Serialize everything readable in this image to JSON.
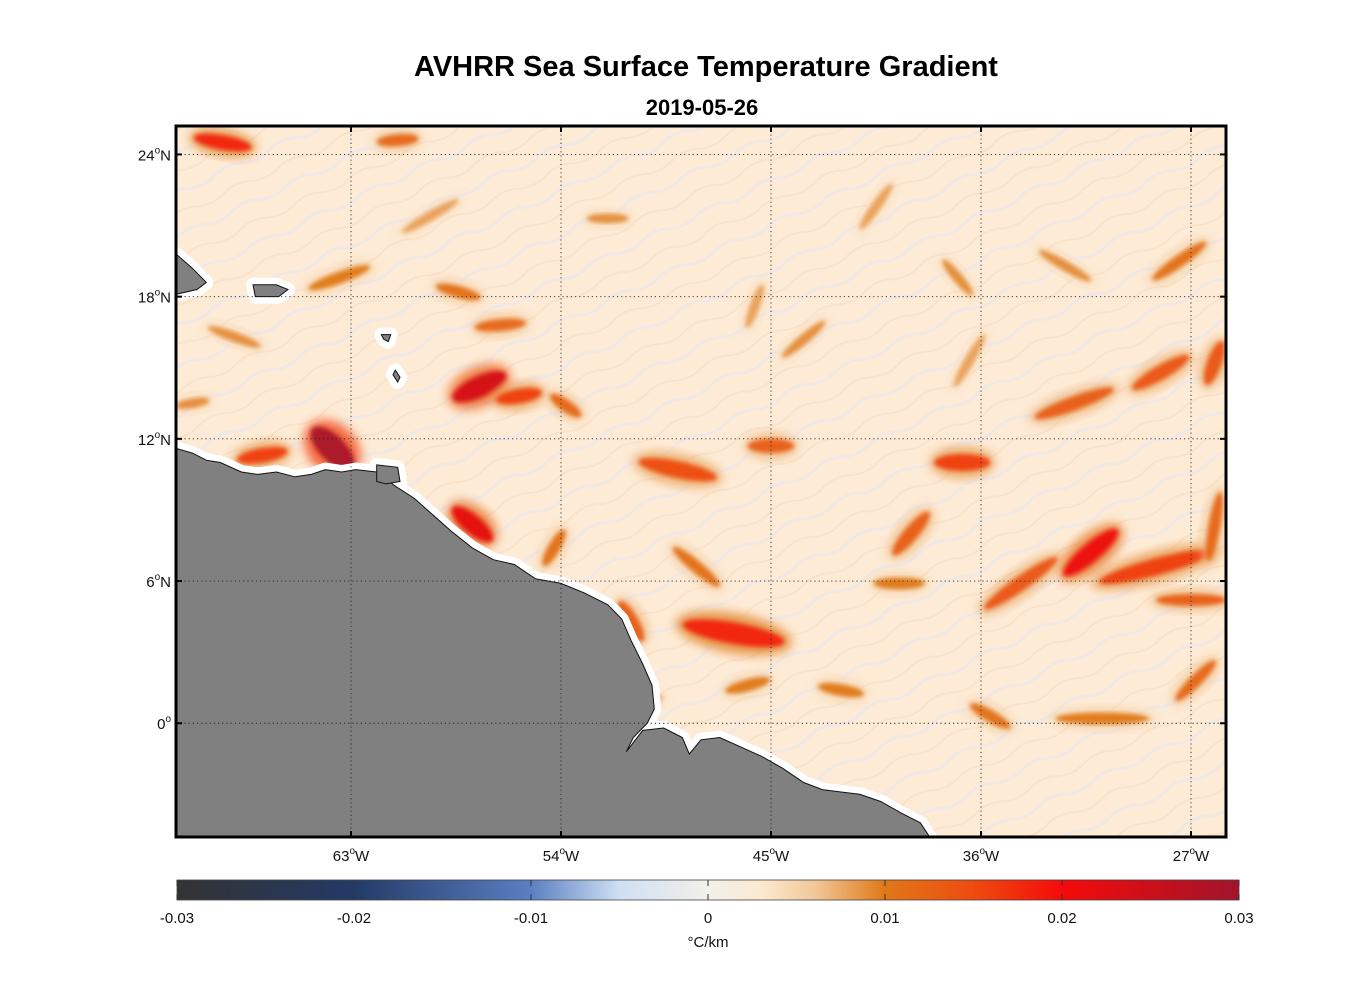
{
  "title": "AVHRR Sea Surface Temperature Gradient",
  "subtitle": "2019-05-26",
  "chart_data": {
    "type": "heatmap",
    "map": {
      "lon_range": [
        -70.5,
        -25.5
      ],
      "lat_range": [
        -4.8,
        25.2
      ],
      "lon_ticks": [
        {
          "value": -63,
          "label": "63",
          "sup": "o",
          "hemi": "W"
        },
        {
          "value": -54,
          "label": "54",
          "sup": "o",
          "hemi": "W"
        },
        {
          "value": -45,
          "label": "45",
          "sup": "o",
          "hemi": "W"
        },
        {
          "value": -36,
          "label": "36",
          "sup": "o",
          "hemi": "W"
        },
        {
          "value": -27,
          "label": "27",
          "sup": "o",
          "hemi": "W"
        }
      ],
      "lat_ticks": [
        {
          "value": 24,
          "label": "24",
          "sup": "o",
          "hemi": "N"
        },
        {
          "value": 18,
          "label": "18",
          "sup": "o",
          "hemi": "N"
        },
        {
          "value": 12,
          "label": "12",
          "sup": "o",
          "hemi": "N"
        },
        {
          "value": 6,
          "label": "6",
          "sup": "o",
          "hemi": "N"
        },
        {
          "value": 0,
          "label": "0",
          "sup": "o",
          "hemi": ""
        }
      ],
      "grid": true,
      "land_color": "#808080",
      "ocean_base_color": "#fdebd6"
    },
    "land_polygons": [
      {
        "name": "south-america-coast",
        "points": [
          [
            -70.5,
            11.6
          ],
          [
            -69.8,
            11.4
          ],
          [
            -69.2,
            11.1
          ],
          [
            -68.6,
            11.0
          ],
          [
            -67.7,
            10.6
          ],
          [
            -67.0,
            10.5
          ],
          [
            -66.2,
            10.6
          ],
          [
            -65.4,
            10.4
          ],
          [
            -64.7,
            10.5
          ],
          [
            -64.1,
            10.7
          ],
          [
            -63.4,
            10.6
          ],
          [
            -62.8,
            10.7
          ],
          [
            -61.9,
            10.6
          ],
          [
            -61.1,
            10.0
          ],
          [
            -60.3,
            9.5
          ],
          [
            -59.5,
            8.8
          ],
          [
            -58.7,
            8.1
          ],
          [
            -57.8,
            7.4
          ],
          [
            -56.9,
            6.9
          ],
          [
            -56.0,
            6.7
          ],
          [
            -55.1,
            6.1
          ],
          [
            -54.0,
            5.9
          ],
          [
            -53.0,
            5.5
          ],
          [
            -52.0,
            5.0
          ],
          [
            -51.4,
            4.4
          ],
          [
            -51.0,
            3.5
          ],
          [
            -50.5,
            2.5
          ],
          [
            -50.1,
            1.6
          ],
          [
            -50.0,
            0.6
          ],
          [
            -50.3,
            0.0
          ],
          [
            -50.9,
            -0.6
          ],
          [
            -51.2,
            -1.2
          ],
          [
            -50.5,
            -0.3
          ],
          [
            -49.6,
            -0.2
          ],
          [
            -48.8,
            -0.6
          ],
          [
            -48.5,
            -1.3
          ],
          [
            -48.0,
            -0.7
          ],
          [
            -47.2,
            -0.6
          ],
          [
            -46.3,
            -1.0
          ],
          [
            -45.4,
            -1.4
          ],
          [
            -44.5,
            -1.9
          ],
          [
            -43.6,
            -2.5
          ],
          [
            -42.8,
            -2.8
          ],
          [
            -42.0,
            -2.9
          ],
          [
            -41.2,
            -3.0
          ],
          [
            -40.3,
            -3.3
          ],
          [
            -39.4,
            -3.8
          ],
          [
            -38.6,
            -4.2
          ],
          [
            -38.2,
            -4.8
          ],
          [
            -70.5,
            -4.8
          ]
        ]
      },
      {
        "name": "hispaniola-tip",
        "points": [
          [
            -70.5,
            19.8
          ],
          [
            -69.8,
            19.2
          ],
          [
            -69.2,
            18.6
          ],
          [
            -69.6,
            18.3
          ],
          [
            -70.5,
            18.1
          ]
        ]
      },
      {
        "name": "puerto-rico",
        "points": [
          [
            -67.2,
            18.5
          ],
          [
            -66.2,
            18.5
          ],
          [
            -65.7,
            18.3
          ],
          [
            -66.1,
            18.0
          ],
          [
            -67.1,
            18.0
          ]
        ]
      },
      {
        "name": "trinidad",
        "points": [
          [
            -61.9,
            10.9
          ],
          [
            -61.0,
            10.8
          ],
          [
            -60.9,
            10.2
          ],
          [
            -61.5,
            10.1
          ],
          [
            -61.9,
            10.2
          ]
        ]
      },
      {
        "name": "guadeloupe",
        "points": [
          [
            -61.7,
            16.4
          ],
          [
            -61.3,
            16.4
          ],
          [
            -61.4,
            16.1
          ],
          [
            -61.6,
            16.2
          ]
        ]
      },
      {
        "name": "martinique",
        "points": [
          [
            -61.1,
            14.9
          ],
          [
            -60.9,
            14.6
          ],
          [
            -61.0,
            14.4
          ],
          [
            -61.2,
            14.7
          ]
        ]
      }
    ],
    "gradient_features": [
      {
        "lon": -68.5,
        "lat": 24.5,
        "len": 2.5,
        "angle": -10,
        "width": 0.6,
        "value": 0.018
      },
      {
        "lon": -61.0,
        "lat": 24.6,
        "len": 1.8,
        "angle": 5,
        "width": 0.5,
        "value": 0.012
      },
      {
        "lon": -57.5,
        "lat": 14.2,
        "len": 2.5,
        "angle": 25,
        "width": 0.9,
        "value": 0.024
      },
      {
        "lon": -55.8,
        "lat": 13.8,
        "len": 2.0,
        "angle": 10,
        "width": 0.6,
        "value": 0.016
      },
      {
        "lon": -53.8,
        "lat": 13.4,
        "len": 1.6,
        "angle": -35,
        "width": 0.5,
        "value": 0.012
      },
      {
        "lon": -63.8,
        "lat": 11.6,
        "len": 2.4,
        "angle": -45,
        "width": 1.1,
        "value": 0.029
      },
      {
        "lon": -66.8,
        "lat": 11.3,
        "len": 2.2,
        "angle": 10,
        "width": 0.6,
        "value": 0.016
      },
      {
        "lon": -57.8,
        "lat": 8.4,
        "len": 2.2,
        "angle": -40,
        "width": 0.8,
        "value": 0.022
      },
      {
        "lon": -56.6,
        "lat": 16.8,
        "len": 2.2,
        "angle": 5,
        "width": 0.5,
        "value": 0.012
      },
      {
        "lon": -58.4,
        "lat": 18.2,
        "len": 2.0,
        "angle": -15,
        "width": 0.5,
        "value": 0.011
      },
      {
        "lon": -63.5,
        "lat": 18.8,
        "len": 2.8,
        "angle": 20,
        "width": 0.5,
        "value": 0.01
      },
      {
        "lon": -49.0,
        "lat": 10.7,
        "len": 3.4,
        "angle": -12,
        "width": 0.7,
        "value": 0.015
      },
      {
        "lon": -45.0,
        "lat": 11.7,
        "len": 2.0,
        "angle": 0,
        "width": 0.6,
        "value": 0.013
      },
      {
        "lon": -46.6,
        "lat": 3.8,
        "len": 4.4,
        "angle": -10,
        "width": 0.9,
        "value": 0.018
      },
      {
        "lon": -51.0,
        "lat": 4.3,
        "len": 2.0,
        "angle": -60,
        "width": 0.6,
        "value": 0.013
      },
      {
        "lon": -46.0,
        "lat": 1.6,
        "len": 2.0,
        "angle": 15,
        "width": 0.5,
        "value": 0.01
      },
      {
        "lon": -36.8,
        "lat": 11.0,
        "len": 2.4,
        "angle": 0,
        "width": 0.7,
        "value": 0.016
      },
      {
        "lon": -39.0,
        "lat": 8.0,
        "len": 2.4,
        "angle": 50,
        "width": 0.6,
        "value": 0.013
      },
      {
        "lon": -31.3,
        "lat": 7.2,
        "len": 3.0,
        "angle": 40,
        "width": 0.8,
        "value": 0.021
      },
      {
        "lon": -34.3,
        "lat": 5.9,
        "len": 3.8,
        "angle": 35,
        "width": 0.6,
        "value": 0.014
      },
      {
        "lon": -28.5,
        "lat": 6.6,
        "len": 5.0,
        "angle": 15,
        "width": 0.7,
        "value": 0.016
      },
      {
        "lon": -27.0,
        "lat": 5.2,
        "len": 3.0,
        "angle": 0,
        "width": 0.5,
        "value": 0.013
      },
      {
        "lon": -32.0,
        "lat": 13.5,
        "len": 3.6,
        "angle": 20,
        "width": 0.6,
        "value": 0.013
      },
      {
        "lon": -28.3,
        "lat": 14.8,
        "len": 2.8,
        "angle": 30,
        "width": 0.6,
        "value": 0.014
      },
      {
        "lon": -26.0,
        "lat": 15.2,
        "len": 2.0,
        "angle": 70,
        "width": 0.6,
        "value": 0.014
      },
      {
        "lon": -26.0,
        "lat": 8.3,
        "len": 3.0,
        "angle": 80,
        "width": 0.5,
        "value": 0.012
      },
      {
        "lon": -26.8,
        "lat": 1.8,
        "len": 2.4,
        "angle": 45,
        "width": 0.5,
        "value": 0.012
      },
      {
        "lon": -35.6,
        "lat": 0.3,
        "len": 2.0,
        "angle": -30,
        "width": 0.5,
        "value": 0.011
      },
      {
        "lon": -30.8,
        "lat": 0.2,
        "len": 4.0,
        "angle": 0,
        "width": 0.5,
        "value": 0.01
      },
      {
        "lon": -39.5,
        "lat": 5.9,
        "len": 2.2,
        "angle": 0,
        "width": 0.5,
        "value": 0.01
      },
      {
        "lon": -42.0,
        "lat": 1.4,
        "len": 2.0,
        "angle": -10,
        "width": 0.5,
        "value": 0.01
      },
      {
        "lon": -48.2,
        "lat": 6.6,
        "len": 2.6,
        "angle": -40,
        "width": 0.5,
        "value": 0.011
      },
      {
        "lon": -54.3,
        "lat": 7.4,
        "len": 1.8,
        "angle": 60,
        "width": 0.5,
        "value": 0.011
      },
      {
        "lon": -43.6,
        "lat": 16.2,
        "len": 2.4,
        "angle": 40,
        "width": 0.4,
        "value": 0.009
      },
      {
        "lon": -37.0,
        "lat": 18.8,
        "len": 2.0,
        "angle": -50,
        "width": 0.4,
        "value": 0.009
      },
      {
        "lon": -32.4,
        "lat": 19.3,
        "len": 2.6,
        "angle": -30,
        "width": 0.4,
        "value": 0.009
      },
      {
        "lon": -27.5,
        "lat": 19.5,
        "len": 2.8,
        "angle": 35,
        "width": 0.5,
        "value": 0.011
      },
      {
        "lon": -52.0,
        "lat": 21.3,
        "len": 1.8,
        "angle": 0,
        "width": 0.4,
        "value": 0.009
      },
      {
        "lon": -59.6,
        "lat": 21.4,
        "len": 2.8,
        "angle": 30,
        "width": 0.4,
        "value": 0.008
      },
      {
        "lon": -68.0,
        "lat": 16.3,
        "len": 2.4,
        "angle": -20,
        "width": 0.4,
        "value": 0.009
      },
      {
        "lon": -69.8,
        "lat": 13.5,
        "len": 1.5,
        "angle": 10,
        "width": 0.4,
        "value": 0.009
      },
      {
        "lon": -40.5,
        "lat": 21.8,
        "len": 2.4,
        "angle": 55,
        "width": 0.4,
        "value": 0.008
      },
      {
        "lon": -50.5,
        "lat": 0.8,
        "len": 1.8,
        "angle": 20,
        "width": 0.4,
        "value": 0.009
      },
      {
        "lon": -45.7,
        "lat": 17.6,
        "len": 2.0,
        "angle": 70,
        "width": 0.4,
        "value": 0.008
      },
      {
        "lon": -36.5,
        "lat": 15.3,
        "len": 2.6,
        "angle": 60,
        "width": 0.4,
        "value": 0.008
      }
    ],
    "colorbar": {
      "label": "°C/km",
      "range": [
        -0.03,
        0.03
      ],
      "ticks": [
        {
          "value": -0.03,
          "label": "-0.03"
        },
        {
          "value": -0.02,
          "label": "-0.02"
        },
        {
          "value": -0.01,
          "label": "-0.01"
        },
        {
          "value": 0,
          "label": "0"
        },
        {
          "value": 0.01,
          "label": "0.01"
        },
        {
          "value": 0.02,
          "label": "0.02"
        },
        {
          "value": 0.03,
          "label": "0.03"
        }
      ],
      "color_stops": [
        {
          "value": -0.03,
          "color": "#333333"
        },
        {
          "value": -0.02,
          "color": "#233a66"
        },
        {
          "value": -0.01,
          "color": "#5b7fc2"
        },
        {
          "value": -0.005,
          "color": "#cfe0f4"
        },
        {
          "value": 0,
          "color": "#f2f0ea"
        },
        {
          "value": 0.003,
          "color": "#fce9d0"
        },
        {
          "value": 0.006,
          "color": "#f1c89a"
        },
        {
          "value": 0.01,
          "color": "#e07818"
        },
        {
          "value": 0.015,
          "color": "#ee4b10"
        },
        {
          "value": 0.02,
          "color": "#f60a0a"
        },
        {
          "value": 0.03,
          "color": "#a0142c"
        }
      ]
    }
  }
}
